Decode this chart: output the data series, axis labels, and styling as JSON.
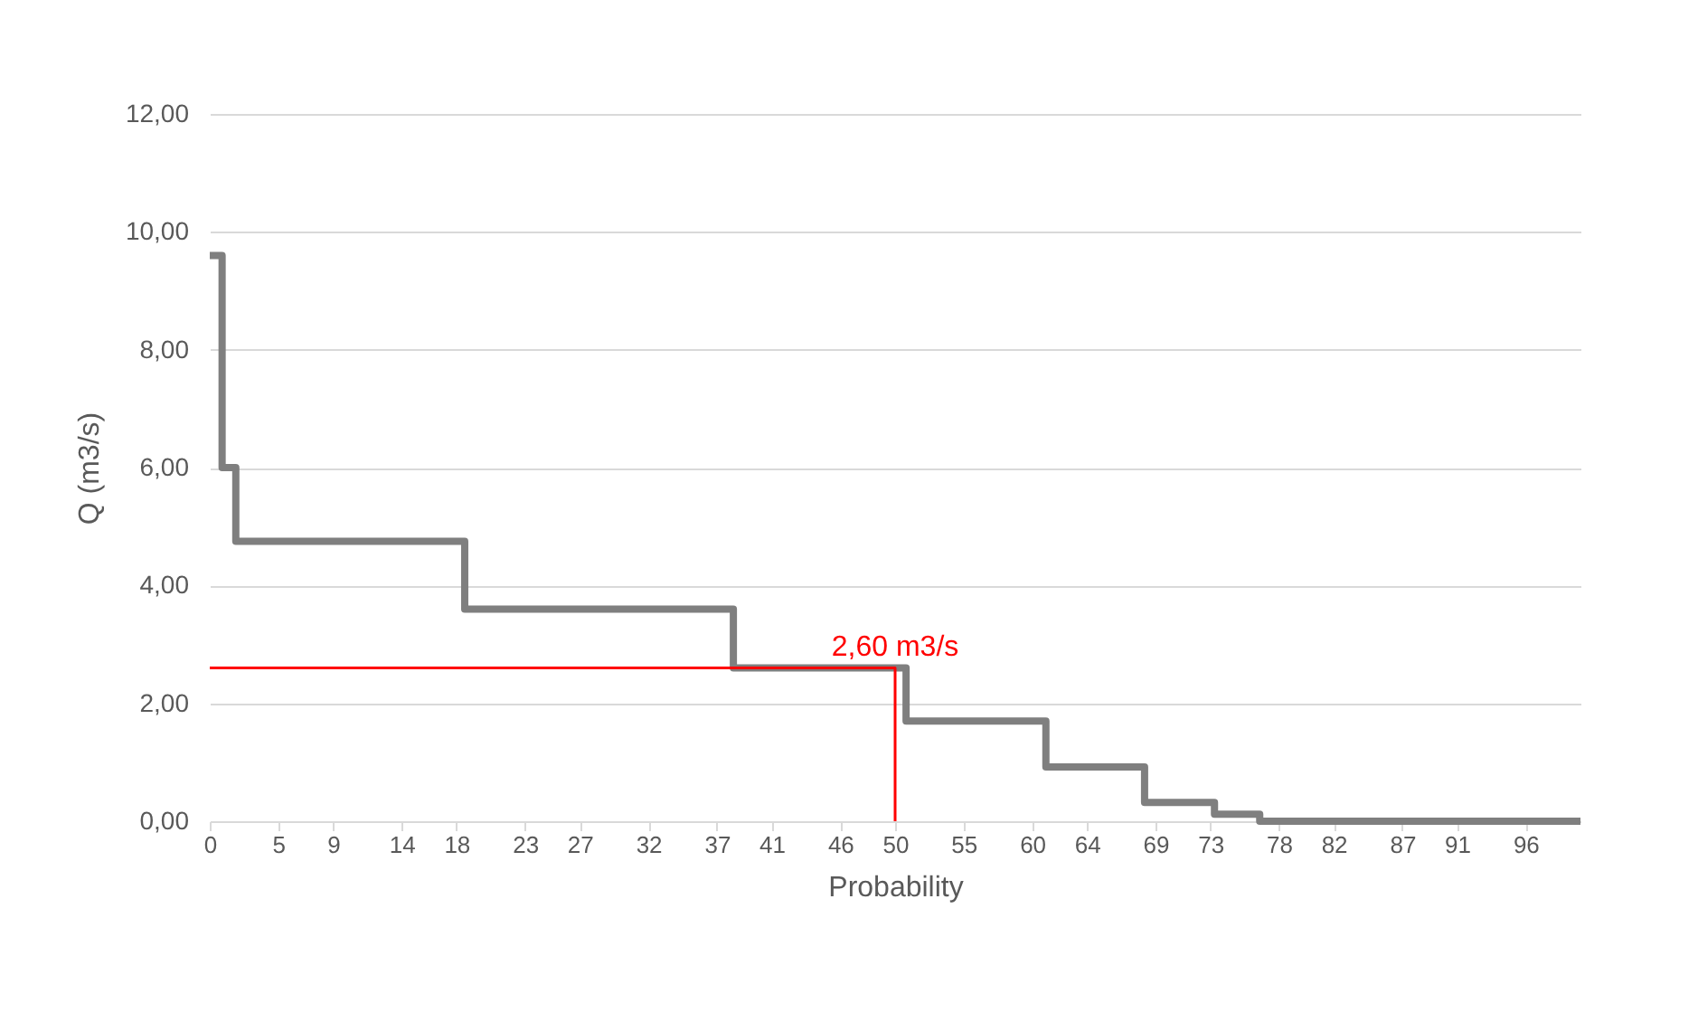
{
  "chart_data": {
    "type": "step",
    "xlabel": "Probability",
    "ylabel": "Q (m3/s)",
    "xlim": [
      0,
      100
    ],
    "ylim": [
      0,
      12
    ],
    "xticks": [
      0,
      5,
      9,
      14,
      18,
      23,
      27,
      32,
      37,
      41,
      46,
      50,
      55,
      60,
      64,
      69,
      73,
      78,
      82,
      87,
      91,
      96
    ],
    "yticks": [
      {
        "value": 0,
        "label": "0,00"
      },
      {
        "value": 2,
        "label": "2,00"
      },
      {
        "value": 4,
        "label": "4,00"
      },
      {
        "value": 6,
        "label": "6,00"
      },
      {
        "value": 8,
        "label": "8,00"
      },
      {
        "value": 10,
        "label": "10,00"
      },
      {
        "value": 12,
        "label": "12,00"
      }
    ],
    "grid": "y",
    "series": [
      {
        "color": "#7f7f7f",
        "x": [
          0,
          0.9,
          1.9,
          18.6,
          38.2,
          50.8,
          61,
          68.2,
          73.3,
          76.6,
          100
        ],
        "values": [
          9.6,
          6.0,
          4.75,
          3.6,
          2.6,
          1.7,
          0.92,
          0.32,
          0.12,
          0,
          0
        ]
      },
      {
        "type": "line",
        "color": "#ff0000",
        "x": [
          0,
          50,
          50
        ],
        "values": [
          2.6,
          2.6,
          0
        ]
      }
    ],
    "annotations": [
      {
        "text": "2,60 m3/s",
        "x": 50,
        "y": 2.6
      }
    ]
  }
}
